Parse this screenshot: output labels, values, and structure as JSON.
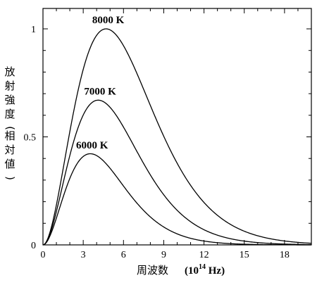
{
  "chart_data": {
    "type": "line",
    "xlabel": "周波数",
    "xlabel_unit": "(10",
    "xlabel_unit_exp": "14",
    "xlabel_unit_tail": " Hz)",
    "ylabel": "放射強度(相対値)",
    "xlim": [
      0,
      20
    ],
    "ylim": [
      0,
      1.05
    ],
    "x_ticks": [
      0,
      3,
      6,
      9,
      12,
      15,
      18
    ],
    "x_tick_labels": [
      "0",
      "3",
      "6",
      "9",
      "12",
      "15",
      "18"
    ],
    "y_ticks": [
      0,
      0.5,
      1
    ],
    "y_tick_labels": [
      "0",
      "0.5",
      "1"
    ],
    "grid": false,
    "legend": "none",
    "series": [
      {
        "name": "6000 K",
        "temperature": 6000,
        "peak_x": 3.5,
        "peak_y": 0.42
      },
      {
        "name": "7000 K",
        "temperature": 7000,
        "peak_x": 4.1,
        "peak_y": 0.67
      },
      {
        "name": "8000 K",
        "temperature": 8000,
        "peak_x": 4.7,
        "peak_y": 1.0
      }
    ]
  }
}
